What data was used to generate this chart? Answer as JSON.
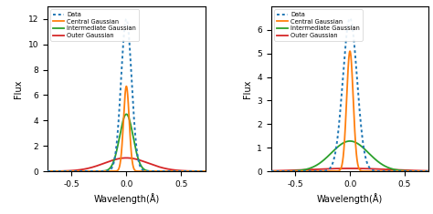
{
  "xlim": [
    -0.72,
    0.72
  ],
  "xticks": [
    -0.5,
    0.0,
    0.5
  ],
  "xlabel": "Wavelength(Å)",
  "ylabel": "Flux",
  "legend_labels": [
    "Data",
    "Central Gaussian",
    "Intermediate Gaussian",
    "Outer Gaussian"
  ],
  "legend_colors": [
    "#1f77b4",
    "#ff7f0e",
    "#2ca02c",
    "#d62728"
  ],
  "panel1": {
    "ylim": [
      0,
      13
    ],
    "yticks": [
      0,
      2,
      4,
      6,
      8,
      10,
      12
    ],
    "data_amp": 12.0,
    "data_sigma": 0.048,
    "central_amp": 6.7,
    "central_sigma": 0.026,
    "inter_amp": 4.5,
    "inter_sigma": 0.062,
    "outer_amp": 1.05,
    "outer_sigma": 0.2
  },
  "panel2": {
    "ylim": [
      0,
      7
    ],
    "yticks": [
      0,
      1,
      2,
      3,
      4,
      5,
      6
    ],
    "data_amp": 6.5,
    "data_sigma": 0.065,
    "central_amp": 5.1,
    "central_sigma": 0.03,
    "inter_amp": 1.28,
    "inter_sigma": 0.17,
    "outer_amp": 0.12,
    "outer_sigma": 0.35
  }
}
